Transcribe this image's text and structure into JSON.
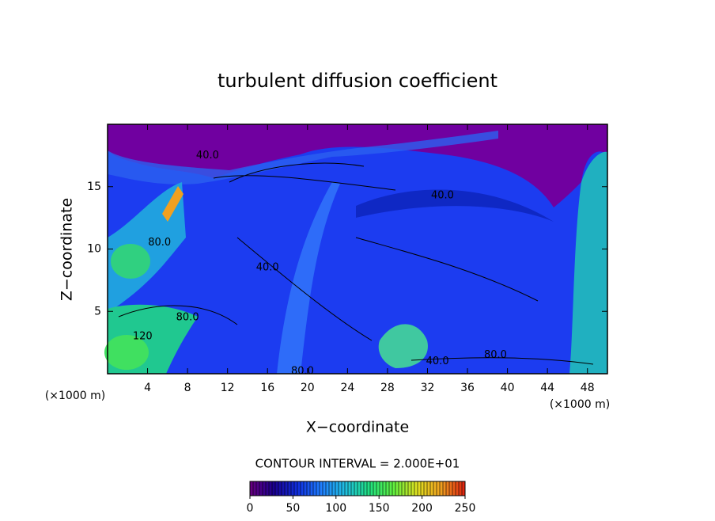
{
  "chart_data": {
    "type": "contour",
    "title": "turbulent diffusion coefficient",
    "xlabel": "X−coordinate",
    "ylabel": "Z−coordinate",
    "x_unit": "(×1000 m)",
    "y_unit": "(×1000 m)",
    "xlim": [
      0,
      50
    ],
    "ylim": [
      0,
      20
    ],
    "xticks": [
      4,
      8,
      12,
      16,
      20,
      24,
      28,
      32,
      36,
      40,
      44,
      48
    ],
    "yticks": [
      5,
      10,
      15
    ],
    "contour_interval_label": "CONTOUR INTERVAL = 2.000E+01",
    "contour_labels": [
      {
        "text": "40.0",
        "x": 33.5,
        "y": 14.3
      },
      {
        "text": "40.0",
        "x": 16.0,
        "y": 8.5
      },
      {
        "text": "40.0",
        "x": 10.0,
        "y": 17.5
      },
      {
        "text": "80.0",
        "x": 8.0,
        "y": 4.5
      },
      {
        "text": "80.0",
        "x": 5.2,
        "y": 10.5
      },
      {
        "text": "80.0",
        "x": 38.8,
        "y": 1.5
      },
      {
        "text": "80.0",
        "x": 19.5,
        "y": 0.2
      },
      {
        "text": "120",
        "x": 3.5,
        "y": 3.0
      },
      {
        "text": "40.0",
        "x": 33.0,
        "y": 1.0
      }
    ],
    "clim": [
      0,
      250
    ],
    "colorbar_ticks": [
      0,
      50,
      100,
      150,
      200,
      250
    ],
    "colormap": [
      "#6a0080",
      "#1a0090",
      "#1030e0",
      "#2080ff",
      "#20c0e0",
      "#20e080",
      "#60f040",
      "#e0e020",
      "#f0a020",
      "#e02010"
    ]
  }
}
